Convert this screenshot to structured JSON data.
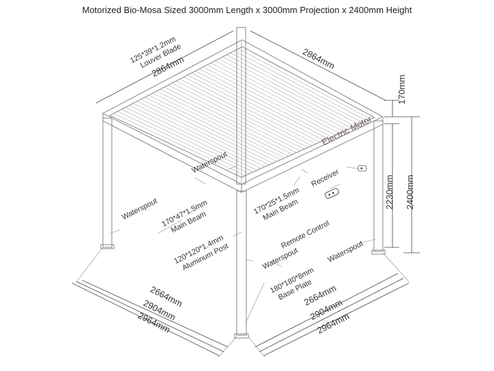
{
  "title": "Motorized Bio-Mosa Sized 3000mm Length x 3000mm Projection x 2400mm Height",
  "labels": {
    "louver_blade": [
      "125*39*1.2mm",
      "Louver Blade"
    ],
    "dim_top_left": "2864mm",
    "dim_top_right": "2864mm",
    "dim_170": "170mm",
    "electric_motor": "Electric Motor",
    "waterspout_center": "Waterspout",
    "receiver": "Receiver",
    "dim_2230": "2230mm",
    "dim_2400": "2400mm",
    "waterspout_left": "Waterspout",
    "main_beam_left": [
      "170*47*1.5mm",
      "Main Beam"
    ],
    "main_beam_right": [
      "170*25*1.5mm",
      "Main Beam"
    ],
    "remote_control": "Remote Control",
    "aluminum_post": [
      "120*120*1.4mm",
      "Aluminum Post"
    ],
    "waterspout_bottom": "Waterspout",
    "waterspout_right": "Waterspout",
    "base_plate": [
      "180*180*8mm",
      "Base Plate"
    ],
    "dim_left_1": "2664mm",
    "dim_left_2": "2904mm",
    "dim_left_3": "2964mm",
    "dim_right_1": "2664mm",
    "dim_right_2": "2904mm",
    "dim_right_3": "2964mm"
  }
}
